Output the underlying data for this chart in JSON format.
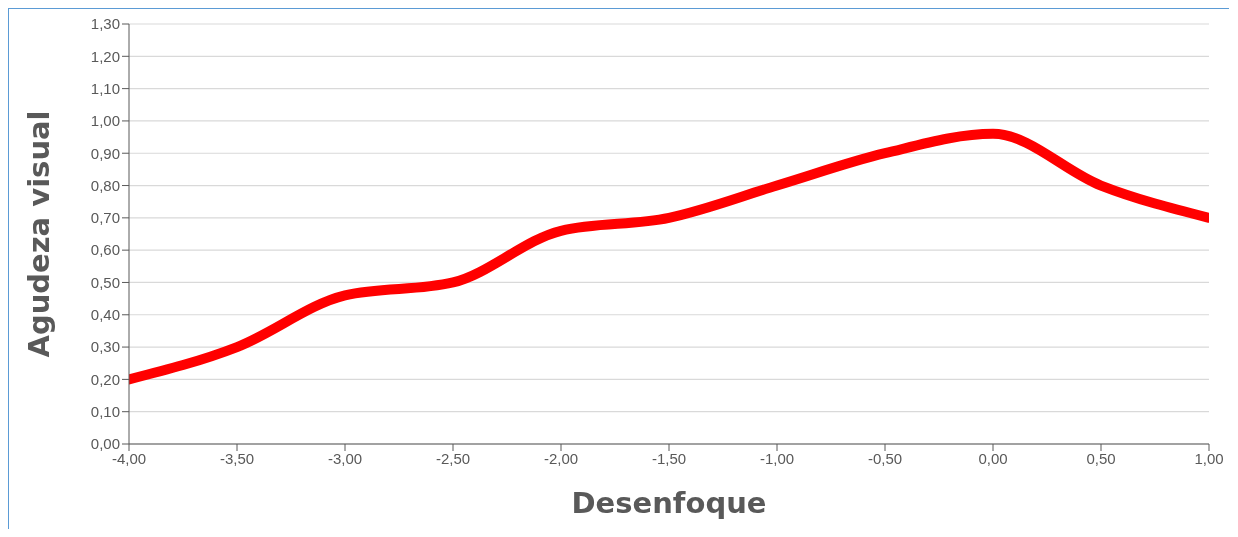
{
  "chart_data": {
    "type": "line",
    "xlabel": "Desenfoque",
    "ylabel": "Agudeza visual",
    "x": [
      -4,
      -3.5,
      -3,
      -2.5,
      -2,
      -1.5,
      -1,
      -0.5,
      0,
      0.5,
      1
    ],
    "series": [
      {
        "color": "#ff0000",
        "values": [
          0.2,
          0.3,
          0.46,
          0.5,
          0.66,
          0.7,
          0.8,
          0.9,
          0.96,
          0.8,
          0.7
        ]
      }
    ],
    "xlim": [
      -4,
      1
    ],
    "xticks": [
      {
        "value": -4,
        "label": "-4,00"
      },
      {
        "value": -3.5,
        "label": "-3,50"
      },
      {
        "value": -3,
        "label": "-3,00"
      },
      {
        "value": -2.5,
        "label": "-2,50"
      },
      {
        "value": -2,
        "label": "-2,00"
      },
      {
        "value": -1.5,
        "label": "-1,50"
      },
      {
        "value": -1,
        "label": "-1,00"
      },
      {
        "value": -0.5,
        "label": "-0,50"
      },
      {
        "value": 0,
        "label": "0,00"
      },
      {
        "value": 0.5,
        "label": "0,50"
      },
      {
        "value": 1,
        "label": "1,00"
      }
    ],
    "ylim": [
      0,
      1.3
    ],
    "yticks": [
      {
        "value": 0,
        "label": "0,00"
      },
      {
        "value": 0.1,
        "label": "0,10"
      },
      {
        "value": 0.2,
        "label": "0,20"
      },
      {
        "value": 0.3,
        "label": "0,30"
      },
      {
        "value": 0.4,
        "label": "0,40"
      },
      {
        "value": 0.5,
        "label": "0,50"
      },
      {
        "value": 0.6,
        "label": "0,60"
      },
      {
        "value": 0.7,
        "label": "0,70"
      },
      {
        "value": 0.8,
        "label": "0,80"
      },
      {
        "value": 0.9,
        "label": "0,90"
      },
      {
        "value": 1,
        "label": "1,00"
      },
      {
        "value": 1.1,
        "label": "1,10"
      },
      {
        "value": 1.2,
        "label": "1,20"
      },
      {
        "value": 1.3,
        "label": "1,30"
      }
    ],
    "grid": "y",
    "legend": false,
    "marker": "none",
    "line_style": "solid"
  }
}
